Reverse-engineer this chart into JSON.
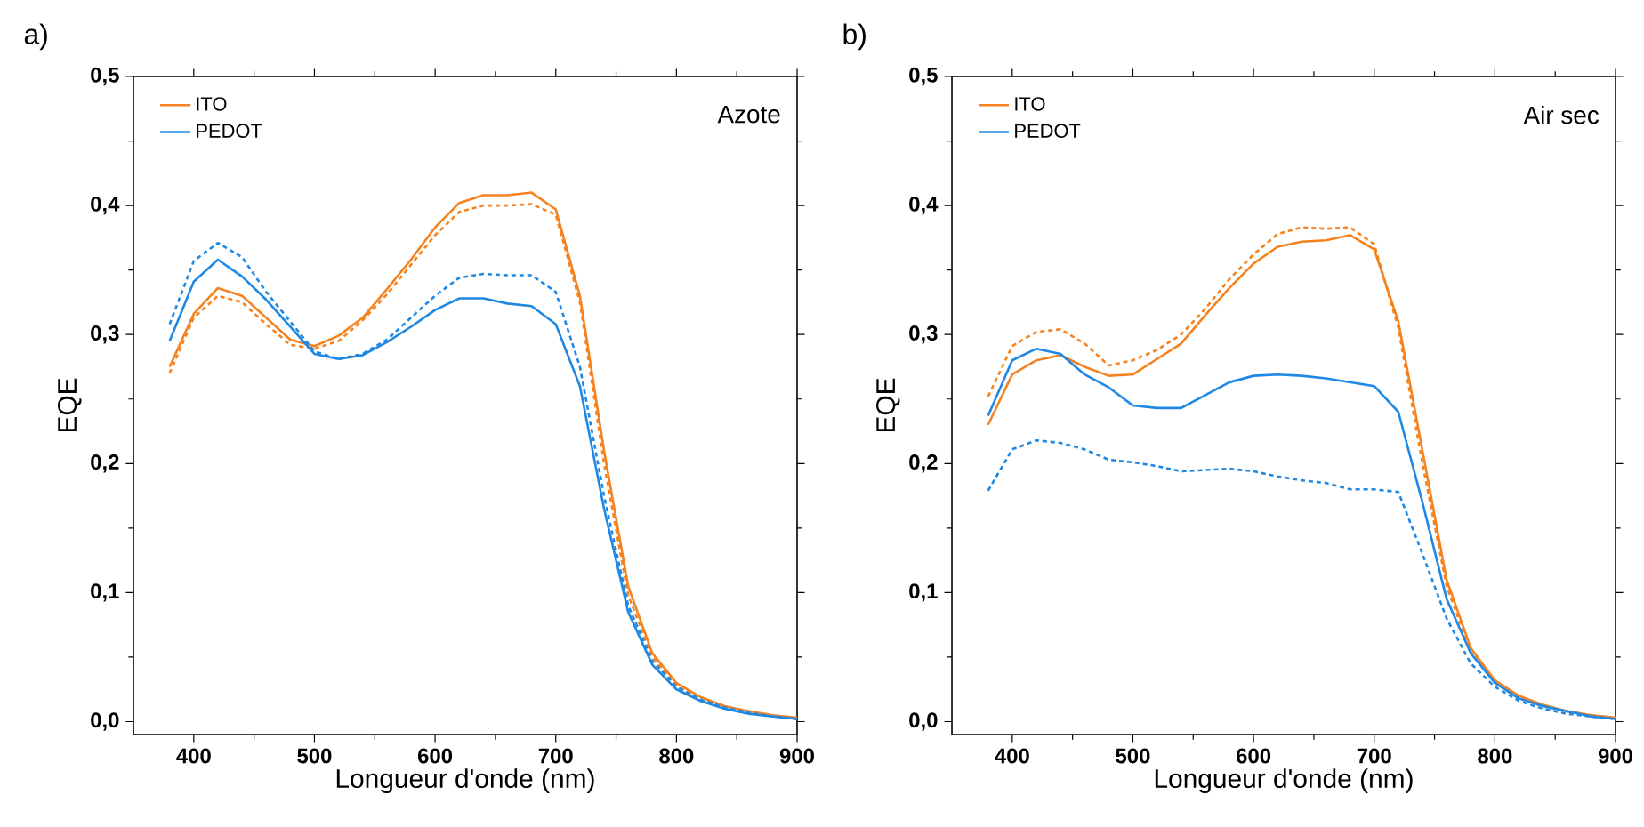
{
  "chart_data": [
    {
      "type": "line",
      "title": "a)",
      "xlabel": "Longueur d'onde (nm)",
      "ylabel": "EQE",
      "annotations": [
        "Azote"
      ],
      "legend": "top left",
      "x": [
        380,
        400,
        420,
        440,
        460,
        480,
        500,
        520,
        540,
        560,
        580,
        600,
        620,
        640,
        660,
        680,
        700,
        720,
        740,
        760,
        780,
        800,
        820,
        840,
        860,
        880,
        900
      ],
      "xlim": [
        350,
        900
      ],
      "ylim": [
        -0.01,
        0.5
      ],
      "xticks": [
        400,
        500,
        600,
        700,
        800,
        900
      ],
      "yticks": [
        {
          "value": 0,
          "label": "0,0"
        },
        {
          "value": 0.1,
          "label": "0,1"
        },
        {
          "value": 0.2,
          "label": "0,2"
        },
        {
          "value": 0.3,
          "label": "0,3"
        },
        {
          "value": 0.4,
          "label": "0,4"
        },
        {
          "value": 0.5,
          "label": "0,5"
        }
      ],
      "series": [
        {
          "name": "ITO",
          "color": "#f5821f",
          "line_style": "solid",
          "values": [
            0.275,
            0.316,
            0.336,
            0.33,
            0.313,
            0.296,
            0.291,
            0.299,
            0.313,
            0.335,
            0.358,
            0.383,
            0.402,
            0.408,
            0.408,
            0.41,
            0.397,
            0.33,
            0.21,
            0.105,
            0.053,
            0.03,
            0.019,
            0.012,
            0.008,
            0.005,
            0.003
          ]
        },
        {
          "color": "#f5821f",
          "line_style": "dashed",
          "values": [
            0.27,
            0.313,
            0.33,
            0.325,
            0.308,
            0.292,
            0.289,
            0.295,
            0.311,
            0.331,
            0.354,
            0.377,
            0.395,
            0.4,
            0.4,
            0.401,
            0.393,
            0.325,
            0.2,
            0.098,
            0.05,
            0.028,
            0.017,
            0.011,
            0.007,
            0.004,
            0.003
          ]
        },
        {
          "name": "PEDOT",
          "color": "#1e88e5",
          "line_style": "solid",
          "values": [
            0.295,
            0.341,
            0.358,
            0.345,
            0.327,
            0.306,
            0.285,
            0.281,
            0.284,
            0.294,
            0.306,
            0.319,
            0.328,
            0.328,
            0.324,
            0.322,
            0.308,
            0.26,
            0.165,
            0.085,
            0.044,
            0.025,
            0.016,
            0.01,
            0.006,
            0.004,
            0.002
          ]
        },
        {
          "color": "#1e88e5",
          "line_style": "dashed",
          "values": [
            0.308,
            0.357,
            0.371,
            0.36,
            0.333,
            0.31,
            0.287,
            0.281,
            0.285,
            0.296,
            0.313,
            0.33,
            0.344,
            0.347,
            0.346,
            0.346,
            0.333,
            0.275,
            0.175,
            0.09,
            0.047,
            0.027,
            0.017,
            0.011,
            0.007,
            0.004,
            0.002
          ]
        }
      ]
    },
    {
      "type": "line",
      "title": "b)",
      "xlabel": "Longueur d'onde (nm)",
      "ylabel": "EQE",
      "annotations": [
        "Air sec"
      ],
      "legend": "top left",
      "x": [
        380,
        400,
        420,
        440,
        460,
        480,
        500,
        520,
        540,
        560,
        580,
        600,
        620,
        640,
        660,
        680,
        700,
        720,
        740,
        760,
        780,
        800,
        820,
        840,
        860,
        880,
        900
      ],
      "xlim": [
        350,
        900
      ],
      "ylim": [
        -0.01,
        0.5
      ],
      "xticks": [
        400,
        500,
        600,
        700,
        800,
        900
      ],
      "yticks": [
        {
          "value": 0,
          "label": "0,0"
        },
        {
          "value": 0.1,
          "label": "0,1"
        },
        {
          "value": 0.2,
          "label": "0,2"
        },
        {
          "value": 0.3,
          "label": "0,3"
        },
        {
          "value": 0.4,
          "label": "0,4"
        },
        {
          "value": 0.5,
          "label": "0,5"
        }
      ],
      "series": [
        {
          "name": "ITO",
          "color": "#f5821f",
          "line_style": "solid",
          "values": [
            0.23,
            0.269,
            0.28,
            0.284,
            0.275,
            0.268,
            0.269,
            0.281,
            0.293,
            0.315,
            0.336,
            0.355,
            0.368,
            0.372,
            0.373,
            0.377,
            0.366,
            0.31,
            0.21,
            0.11,
            0.057,
            0.032,
            0.02,
            0.013,
            0.008,
            0.005,
            0.003
          ]
        },
        {
          "color": "#f5821f",
          "line_style": "dashed",
          "values": [
            0.252,
            0.291,
            0.302,
            0.304,
            0.293,
            0.276,
            0.28,
            0.288,
            0.3,
            0.32,
            0.343,
            0.362,
            0.378,
            0.383,
            0.382,
            0.383,
            0.37,
            0.305,
            0.2,
            0.105,
            0.054,
            0.03,
            0.018,
            0.012,
            0.008,
            0.005,
            0.003
          ]
        },
        {
          "name": "PEDOT",
          "color": "#1e88e5",
          "line_style": "solid",
          "values": [
            0.237,
            0.28,
            0.289,
            0.285,
            0.269,
            0.259,
            0.245,
            0.243,
            0.243,
            0.253,
            0.263,
            0.268,
            0.269,
            0.268,
            0.266,
            0.263,
            0.26,
            0.24,
            0.17,
            0.095,
            0.053,
            0.03,
            0.018,
            0.012,
            0.008,
            0.004,
            0.002
          ]
        },
        {
          "color": "#1e88e5",
          "line_style": "dashed",
          "values": [
            0.179,
            0.211,
            0.218,
            0.216,
            0.211,
            0.203,
            0.201,
            0.198,
            0.194,
            0.195,
            0.196,
            0.194,
            0.19,
            0.187,
            0.185,
            0.18,
            0.18,
            0.178,
            0.13,
            0.08,
            0.045,
            0.027,
            0.016,
            0.01,
            0.006,
            0.004,
            0.002
          ]
        }
      ]
    }
  ]
}
